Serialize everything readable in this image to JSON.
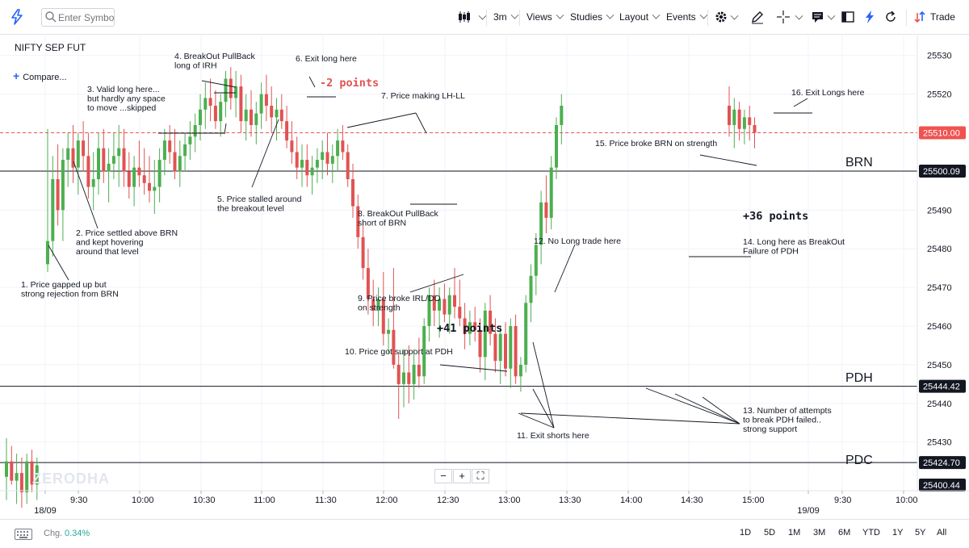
{
  "toolbar": {
    "search_placeholder": "Enter Symbol",
    "interval": "3m",
    "views": "Views",
    "studies": "Studies",
    "layout": "Layout",
    "events": "Events",
    "trade": "Trade"
  },
  "chart_header": {
    "symbol": "NIFTY SEP FUT",
    "compare": "Compare..."
  },
  "watermark": "ZERODHA",
  "chart_data": {
    "type": "candlestick",
    "symbol": "NIFTY SEP FUT",
    "interval": "3m",
    "ylim": [
      25395,
      25537
    ],
    "y_ticks": [
      25430,
      25440,
      25450,
      25460,
      25470,
      25480,
      25490,
      25500,
      25510,
      25520,
      25530
    ],
    "x_ticks": [
      "18/09",
      "9:30",
      "10:00",
      "10:30",
      "11:00",
      "11:30",
      "12:00",
      "12:30",
      "13:00",
      "13:30",
      "14:00",
      "14:30",
      "15:00",
      "19/09",
      "9:30",
      "10:00"
    ],
    "up_color": "#4caf50",
    "down_color": "#e05353",
    "grid": true,
    "levels": [
      {
        "name": "BRN",
        "value": 25500.09,
        "label": "25500.09"
      },
      {
        "name": "PDH",
        "value": 25444.42,
        "label": "25444.42"
      },
      {
        "name": "PDC",
        "value": 25424.7,
        "label": "25424.70"
      }
    ],
    "last_price": {
      "value": 25510.0,
      "label": "25510.00",
      "color": "#ef5350"
    },
    "bottom_price": {
      "value": 25400.44,
      "label": "25400.44"
    },
    "candles": [
      [
        25421,
        25431,
        25415,
        25425
      ],
      [
        25425,
        25429,
        25419,
        25420
      ],
      [
        25420,
        25427,
        25414,
        25422
      ],
      [
        25422,
        25426,
        25413,
        25417
      ],
      [
        25417,
        25427,
        25414,
        25425
      ],
      [
        25425,
        25428,
        25417,
        25419
      ],
      [
        25419,
        25426,
        25415,
        25424
      ],
      [
        25476,
        25511,
        25474,
        25482
      ],
      [
        25482,
        25504,
        25478,
        25498
      ],
      [
        25498,
        25507,
        25486,
        25490
      ],
      [
        25490,
        25506,
        25482,
        25503
      ],
      [
        25503,
        25510,
        25496,
        25506
      ],
      [
        25506,
        25512,
        25497,
        25501
      ],
      [
        25501,
        25510,
        25494,
        25508
      ],
      [
        25508,
        25513,
        25500,
        25504
      ],
      [
        25504,
        25510,
        25493,
        25496
      ],
      [
        25496,
        25505,
        25490,
        25498
      ],
      [
        25498,
        25510,
        25494,
        25506
      ],
      [
        25506,
        25511,
        25497,
        25500
      ],
      [
        25500,
        25506,
        25492,
        25502
      ],
      [
        25502,
        25510,
        25498,
        25504
      ],
      [
        25504,
        25512,
        25496,
        25506
      ],
      [
        25506,
        25511,
        25496,
        25500
      ],
      [
        25500,
        25505,
        25493,
        25496
      ],
      [
        25496,
        25504,
        25491,
        25501
      ],
      [
        25501,
        25508,
        25496,
        25499
      ],
      [
        25499,
        25506,
        25494,
        25497
      ],
      [
        25497,
        25504,
        25492,
        25495
      ],
      [
        25495,
        25503,
        25489,
        25496
      ],
      [
        25496,
        25506,
        25492,
        25503
      ],
      [
        25503,
        25511,
        25499,
        25508
      ],
      [
        25508,
        25512,
        25502,
        25505
      ],
      [
        25505,
        25511,
        25498,
        25500
      ],
      [
        25500,
        25508,
        25496,
        25504
      ],
      [
        25504,
        25510,
        25500,
        25507
      ],
      [
        25507,
        25513,
        25503,
        25509
      ],
      [
        25509,
        25515,
        25505,
        25512
      ],
      [
        25512,
        25520,
        25508,
        25516
      ],
      [
        25516,
        25523,
        25511,
        25519
      ],
      [
        25519,
        25524,
        25513,
        25517
      ],
      [
        25517,
        25521,
        25511,
        25513
      ],
      [
        25513,
        25520,
        25509,
        25518
      ],
      [
        25518,
        25526,
        25514,
        25524
      ],
      [
        25524,
        25527,
        25516,
        25519
      ],
      [
        25519,
        25526,
        25514,
        25522
      ],
      [
        25522,
        25525,
        25510,
        25513
      ],
      [
        25513,
        25520,
        25508,
        25516
      ],
      [
        25516,
        25521,
        25509,
        25512
      ],
      [
        25512,
        25518,
        25507,
        25515
      ],
      [
        25515,
        25523,
        25511,
        25520
      ],
      [
        25520,
        25525,
        25513,
        25517
      ],
      [
        25517,
        25522,
        25510,
        25514
      ],
      [
        25514,
        25519,
        25508,
        25516
      ],
      [
        25516,
        25520,
        25511,
        25513
      ],
      [
        25513,
        25517,
        25506,
        25508
      ],
      [
        25508,
        25513,
        25502,
        25505
      ],
      [
        25505,
        25509,
        25498,
        25501
      ],
      [
        25501,
        25507,
        25496,
        25503
      ],
      [
        25503,
        25507,
        25496,
        25499
      ],
      [
        25499,
        25504,
        25494,
        25501
      ],
      [
        25501,
        25506,
        25497,
        25503
      ],
      [
        25503,
        25508,
        25498,
        25505
      ],
      [
        25505,
        25510,
        25499,
        25502
      ],
      [
        25502,
        25507,
        25497,
        25504
      ],
      [
        25504,
        25511,
        25500,
        25508
      ],
      [
        25508,
        25512,
        25503,
        25505
      ],
      [
        25505,
        25507,
        25496,
        25498
      ],
      [
        25498,
        25502,
        25488,
        25491
      ],
      [
        25491,
        25494,
        25480,
        25483
      ],
      [
        25483,
        25487,
        25472,
        25475
      ],
      [
        25475,
        25480,
        25463,
        25467
      ],
      [
        25467,
        25472,
        25460,
        25464
      ],
      [
        25464,
        25470,
        25460,
        25467
      ],
      [
        25467,
        25474,
        25455,
        25458
      ],
      [
        25458,
        25462,
        25453,
        25459
      ],
      [
        25459,
        25475,
        25449,
        25450
      ],
      [
        25450,
        25453,
        25436,
        25445
      ],
      [
        25445,
        25454,
        25439,
        25448
      ],
      [
        25448,
        25455,
        25440,
        25445
      ],
      [
        25445,
        25454,
        25441,
        25450
      ],
      [
        25450,
        25457,
        25444,
        25447
      ],
      [
        25447,
        25462,
        25445,
        25460
      ],
      [
        25460,
        25470,
        25456,
        25468
      ],
      [
        25468,
        25472,
        25460,
        25464
      ],
      [
        25464,
        25470,
        25457,
        25467
      ],
      [
        25467,
        25471,
        25461,
        25463
      ],
      [
        25463,
        25470,
        25458,
        25468
      ],
      [
        25468,
        25475,
        25462,
        25465
      ],
      [
        25465,
        25472,
        25460,
        25462
      ],
      [
        25462,
        25466,
        25454,
        25458
      ],
      [
        25458,
        25464,
        25455,
        25461
      ],
      [
        25461,
        25465,
        25456,
        25459
      ],
      [
        25459,
        25462,
        25448,
        25452
      ],
      [
        25452,
        25466,
        25446,
        25464
      ],
      [
        25464,
        25468,
        25455,
        25458
      ],
      [
        25458,
        25462,
        25448,
        25451
      ],
      [
        25451,
        25460,
        25445,
        25458
      ],
      [
        25458,
        25461,
        25447,
        25449
      ],
      [
        25449,
        25462,
        25444,
        25460
      ],
      [
        25460,
        25463,
        25445,
        25447
      ],
      [
        25447,
        25452,
        25443,
        25450
      ],
      [
        25450,
        25468,
        25448,
        25466
      ],
      [
        25466,
        25476,
        25461,
        25473
      ],
      [
        25473,
        25484,
        25468,
        25481
      ],
      [
        25481,
        25495,
        25476,
        25492
      ],
      [
        25492,
        25499,
        25484,
        25488
      ],
      [
        25488,
        25504,
        25485,
        25501
      ],
      [
        25501,
        25514,
        25498,
        25512
      ],
      [
        25512,
        25520,
        25507,
        25517
      ],
      [
        25517,
        25522,
        25509,
        25512
      ],
      [
        25512,
        25519,
        25506,
        25516
      ],
      [
        25516,
        25518,
        25508,
        25511
      ],
      [
        25511,
        25516,
        25507,
        25514
      ],
      [
        25514,
        25517,
        25508,
        25512
      ],
      [
        25512,
        25514,
        25506,
        25510
      ]
    ],
    "annotations": [
      "1. Price gapped up but\nstrong rejection from BRN",
      "2. Price settled above BRN\nand kept hovering\naround that level",
      "3. Valid long here...\nbut hardly any space\nto move ...skipped",
      "4. BreakOut PullBack\nlong of IRH",
      "5. Price stalled around\nthe breakout level",
      "6. Exit long here",
      "7. Price making LH-LL",
      "8. BreakOut PullBack\nshort of BRN",
      "9. Price broke IRL/DO\non strength",
      "10. Price got support at PDH",
      "11. Exit shorts here",
      "12. No Long trade here",
      "13. Number of attempts\nto break PDH failed..\nstrong support",
      "14. Long here as BreakOut\nFailure of PDH",
      "15. Price broke BRN on strength",
      "16. Exit Longs here"
    ],
    "points_labels": [
      "-2 points",
      "+41 points",
      "+36 points"
    ],
    "level_labels": [
      "BRN",
      "PDH",
      "PDC"
    ]
  },
  "bottom_bar": {
    "chg_label": "Chg.",
    "chg_value": "0.34%",
    "ranges": [
      "1D",
      "5D",
      "1M",
      "3M",
      "6M",
      "YTD",
      "1Y",
      "5Y",
      "All"
    ]
  }
}
